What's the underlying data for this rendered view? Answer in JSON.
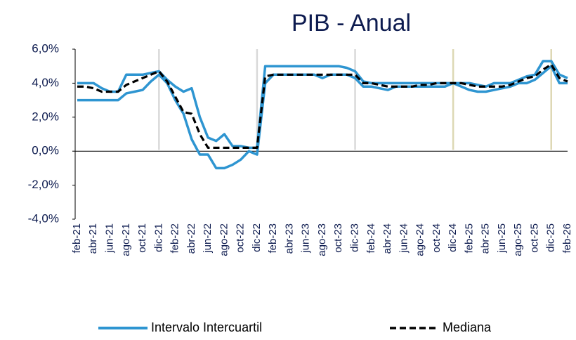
{
  "chart_data": {
    "type": "line",
    "title": "PIB - Anual",
    "categories": [
      "feb-21",
      null,
      "abr-21",
      null,
      "jun-21",
      null,
      "ago-21",
      null,
      "oct-21",
      null,
      "dic-21",
      null,
      "feb-22",
      null,
      "abr-22",
      null,
      "jun-22",
      null,
      "ago-22",
      null,
      "oct-22",
      null,
      "dic-22",
      null,
      "feb-23",
      null,
      "abr-23",
      null,
      "jun-23",
      null,
      "ago-23",
      null,
      "oct-23",
      null,
      "dic-23",
      null,
      "feb-24",
      null,
      "abr-24",
      null,
      "jun-24",
      null,
      "ago-24",
      null,
      "oct-24",
      null,
      "dic-24",
      null,
      "feb-25",
      null,
      "abr-25",
      null,
      "jun-25",
      null,
      "ago-25",
      null,
      "oct-25",
      null,
      "dic-25",
      null,
      "feb-26"
    ],
    "band": {
      "name": "Intervalo Intercuartil",
      "color": "#2e95d1",
      "upper": [
        4.0,
        4.0,
        4.0,
        3.7,
        3.5,
        3.5,
        4.5,
        4.5,
        4.5,
        4.6,
        4.7,
        4.2,
        3.8,
        3.5,
        3.7,
        2.0,
        0.8,
        0.6,
        1.0,
        0.3,
        0.3,
        0.2,
        0.2,
        5.0,
        5.0,
        5.0,
        5.0,
        5.0,
        5.0,
        5.0,
        5.0,
        5.0,
        5.0,
        4.9,
        4.7,
        4.1,
        4.0,
        4.0,
        4.0,
        4.0,
        4.0,
        4.0,
        4.0,
        4.0,
        4.0,
        4.0,
        4.0,
        4.0,
        4.0,
        3.9,
        3.8,
        4.0,
        4.0,
        4.0,
        4.2,
        4.4,
        4.5,
        5.3,
        5.3,
        4.5,
        4.3
      ],
      "lower": [
        3.0,
        3.0,
        3.0,
        3.0,
        3.0,
        3.0,
        3.4,
        3.5,
        3.6,
        4.1,
        4.5,
        4.0,
        3.0,
        2.2,
        0.7,
        -0.2,
        -0.2,
        -1.0,
        -1.0,
        -0.8,
        -0.5,
        0.0,
        -0.2,
        4.0,
        4.5,
        4.5,
        4.5,
        4.5,
        4.5,
        4.5,
        4.3,
        4.5,
        4.5,
        4.5,
        4.3,
        3.8,
        3.8,
        3.7,
        3.6,
        3.8,
        3.8,
        3.8,
        3.8,
        3.8,
        3.8,
        3.8,
        4.0,
        3.8,
        3.6,
        3.5,
        3.5,
        3.6,
        3.7,
        3.8,
        4.0,
        4.0,
        4.2,
        4.6,
        5.0,
        4.0,
        4.0
      ]
    },
    "series": [
      {
        "name": "Mediana",
        "color": "#000000",
        "dashed": true,
        "values": [
          3.8,
          3.8,
          3.7,
          3.5,
          3.5,
          3.5,
          3.9,
          4.1,
          4.3,
          4.5,
          4.7,
          4.1,
          3.2,
          2.3,
          2.2,
          1.0,
          0.2,
          0.2,
          0.2,
          0.2,
          0.2,
          0.2,
          0.2,
          4.4,
          4.5,
          4.5,
          4.5,
          4.5,
          4.5,
          4.5,
          4.5,
          4.5,
          4.5,
          4.5,
          4.5,
          4.0,
          4.0,
          3.9,
          3.8,
          3.8,
          3.8,
          3.8,
          3.9,
          3.9,
          4.0,
          4.0,
          4.0,
          4.0,
          3.9,
          3.8,
          3.8,
          3.8,
          3.8,
          3.9,
          4.1,
          4.3,
          4.4,
          4.8,
          5.1,
          4.3,
          4.1
        ]
      }
    ],
    "ylim": [
      -4,
      6
    ],
    "yticks": [
      {
        "value": -4,
        "label": "-4,0%"
      },
      {
        "value": -2,
        "label": "-2,0%"
      },
      {
        "value": 0,
        "label": "0,0%"
      },
      {
        "value": 2,
        "label": "2,0%"
      },
      {
        "value": 4,
        "label": "4,0%"
      },
      {
        "value": 6,
        "label": "6,0%"
      }
    ],
    "year_lines": [
      {
        "at": "dic-21",
        "color": "#d9d9d9"
      },
      {
        "at": "dic-22",
        "color": "#d9d9d9"
      },
      {
        "at": "dic-23",
        "color": "#d9d9d9"
      },
      {
        "at": "dic-24",
        "color": "#ddd8b4"
      },
      {
        "at": "dic-25",
        "color": "#ddd8b4"
      }
    ]
  }
}
